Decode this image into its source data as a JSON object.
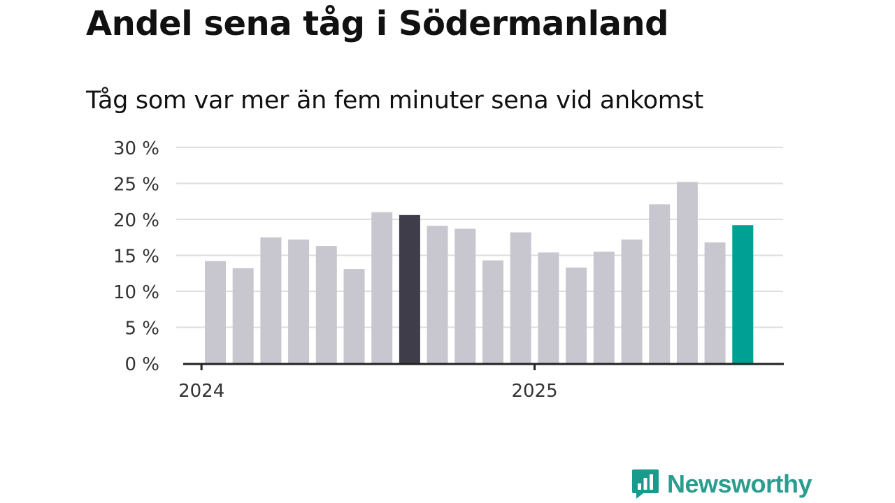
{
  "title": "Andel sena tåg i Södermanland",
  "subtitle": "Tåg som var mer än fem minuter sena vid ankomst",
  "brand": {
    "name": "Newsworthy",
    "icon": "bar-chart-icon",
    "color": "#1a9a8c"
  },
  "colors": {
    "default": "#c8c7cf",
    "highlight_dark": "#403d4b",
    "highlight_teal": "#00a194",
    "grid": "#dddddd",
    "axis": "#222222"
  },
  "chart_data": {
    "type": "bar",
    "title": "Andel sena tåg i Södermanland",
    "subtitle": "Tåg som var mer än fem minuter sena vid ankomst",
    "xlabel": "",
    "ylabel": "",
    "ylim": [
      0,
      30
    ],
    "yticks": [
      0,
      5,
      10,
      15,
      20,
      25,
      30
    ],
    "ytick_labels": [
      "0 %",
      "5 %",
      "10 %",
      "15 %",
      "20 %",
      "25 %",
      "30 %"
    ],
    "grid": true,
    "x_ticks": [
      {
        "label": "2024",
        "position_index": -0.5
      },
      {
        "label": "2025",
        "position_index": 11.5
      }
    ],
    "categories": [
      "2024-01",
      "2024-02",
      "2024-03",
      "2024-04",
      "2024-05",
      "2024-06",
      "2024-07",
      "2024-08",
      "2024-09",
      "2024-10",
      "2024-11",
      "2024-12",
      "2025-01",
      "2025-02",
      "2025-03",
      "2025-04",
      "2025-05",
      "2025-06",
      "2025-07",
      "2025-08"
    ],
    "values": [
      14.2,
      13.2,
      17.5,
      17.2,
      16.3,
      13.1,
      21.0,
      20.6,
      19.1,
      18.7,
      14.3,
      18.2,
      15.4,
      13.3,
      15.5,
      17.2,
      22.1,
      25.2,
      16.8,
      19.2
    ],
    "highlight": {
      "7": "highlight_dark",
      "19": "highlight_teal"
    }
  }
}
